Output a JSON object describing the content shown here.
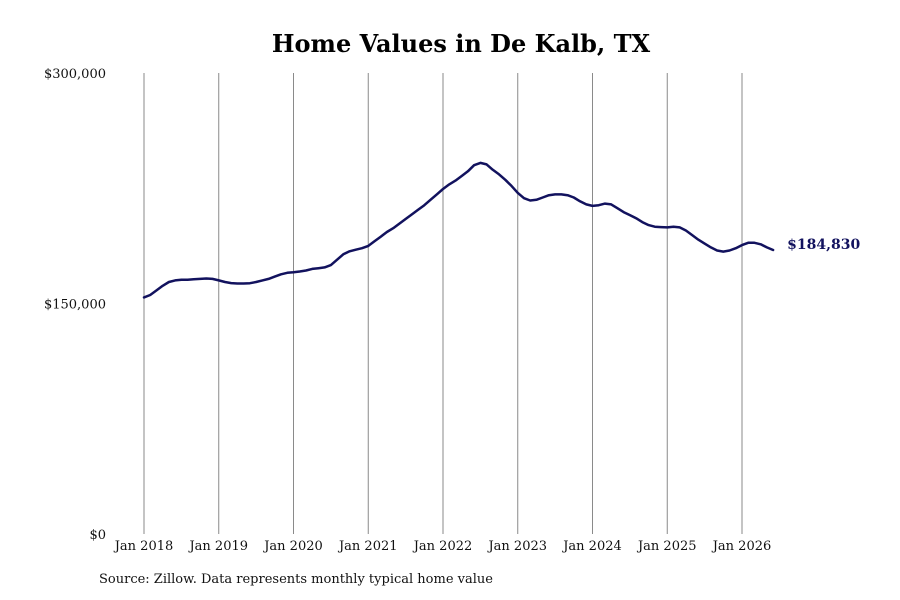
{
  "source_note": "Source: Zillow. Data represents monthly typical home value",
  "chart_data": {
    "type": "line",
    "title": "Home Values in De Kalb, TX",
    "xlabel": "",
    "ylabel": "",
    "ylim": [
      0,
      300000
    ],
    "y_ticks": [
      {
        "value": 0,
        "label": "$0"
      },
      {
        "value": 150000,
        "label": "$150,000"
      },
      {
        "value": 300000,
        "label": "$300,000"
      }
    ],
    "x_ticks": [
      {
        "date": "2018-01",
        "label": "Jan 2018"
      },
      {
        "date": "2019-01",
        "label": "Jan 2019"
      },
      {
        "date": "2020-01",
        "label": "Jan 2020"
      },
      {
        "date": "2021-01",
        "label": "Jan 2021"
      },
      {
        "date": "2022-01",
        "label": "Jan 2022"
      },
      {
        "date": "2023-01",
        "label": "Jan 2023"
      },
      {
        "date": "2024-01",
        "label": "Jan 2024"
      },
      {
        "date": "2025-01",
        "label": "Jan 2025"
      },
      {
        "date": "2026-01",
        "label": "Jan 2026"
      }
    ],
    "grid": "vertical",
    "line_color": "#12125e",
    "end_label": "$184,830",
    "series": [
      {
        "points": [
          [
            "2018-01",
            154000
          ],
          [
            "2018-02",
            155500
          ],
          [
            "2018-03",
            158500
          ],
          [
            "2018-04",
            161500
          ],
          [
            "2018-05",
            164000
          ],
          [
            "2018-06",
            165000
          ],
          [
            "2018-07",
            165500
          ],
          [
            "2018-08",
            165500
          ],
          [
            "2018-09",
            165800
          ],
          [
            "2018-10",
            166000
          ],
          [
            "2018-11",
            166300
          ],
          [
            "2018-12",
            166000
          ],
          [
            "2019-01",
            165000
          ],
          [
            "2019-02",
            164000
          ],
          [
            "2019-03",
            163300
          ],
          [
            "2019-04",
            163000
          ],
          [
            "2019-05",
            163000
          ],
          [
            "2019-06",
            163200
          ],
          [
            "2019-07",
            164000
          ],
          [
            "2019-08",
            165000
          ],
          [
            "2019-09",
            166000
          ],
          [
            "2019-10",
            167500
          ],
          [
            "2019-11",
            169000
          ],
          [
            "2019-12",
            170000
          ],
          [
            "2020-01",
            170300
          ],
          [
            "2020-02",
            170800
          ],
          [
            "2020-03",
            171500
          ],
          [
            "2020-04",
            172500
          ],
          [
            "2020-05",
            173000
          ],
          [
            "2020-06",
            173500
          ],
          [
            "2020-07",
            175000
          ],
          [
            "2020-08",
            178500
          ],
          [
            "2020-09",
            182000
          ],
          [
            "2020-10",
            184000
          ],
          [
            "2020-11",
            185000
          ],
          [
            "2020-12",
            186000
          ],
          [
            "2021-01",
            187500
          ],
          [
            "2021-02",
            190500
          ],
          [
            "2021-03",
            193500
          ],
          [
            "2021-04",
            196500
          ],
          [
            "2021-05",
            199000
          ],
          [
            "2021-06",
            202000
          ],
          [
            "2021-07",
            205000
          ],
          [
            "2021-08",
            208000
          ],
          [
            "2021-09",
            211000
          ],
          [
            "2021-10",
            214000
          ],
          [
            "2021-11",
            217500
          ],
          [
            "2021-12",
            221000
          ],
          [
            "2022-01",
            224500
          ],
          [
            "2022-02",
            227500
          ],
          [
            "2022-03",
            230000
          ],
          [
            "2022-04",
            233000
          ],
          [
            "2022-05",
            236000
          ],
          [
            "2022-06",
            240000
          ],
          [
            "2022-07",
            241500
          ],
          [
            "2022-08",
            240500
          ],
          [
            "2022-09",
            237000
          ],
          [
            "2022-10",
            234000
          ],
          [
            "2022-11",
            230500
          ],
          [
            "2022-12",
            226500
          ],
          [
            "2023-01",
            222000
          ],
          [
            "2023-02",
            218500
          ],
          [
            "2023-03",
            217000
          ],
          [
            "2023-04",
            217500
          ],
          [
            "2023-05",
            219000
          ],
          [
            "2023-06",
            220500
          ],
          [
            "2023-07",
            221000
          ],
          [
            "2023-08",
            221000
          ],
          [
            "2023-09",
            220500
          ],
          [
            "2023-10",
            219000
          ],
          [
            "2023-11",
            216500
          ],
          [
            "2023-12",
            214500
          ],
          [
            "2024-01",
            213500
          ],
          [
            "2024-02",
            214000
          ],
          [
            "2024-03",
            215000
          ],
          [
            "2024-04",
            214500
          ],
          [
            "2024-05",
            212000
          ],
          [
            "2024-06",
            209500
          ],
          [
            "2024-07",
            207500
          ],
          [
            "2024-08",
            205500
          ],
          [
            "2024-09",
            203000
          ],
          [
            "2024-10",
            201000
          ],
          [
            "2024-11",
            200000
          ],
          [
            "2024-12",
            199700
          ],
          [
            "2025-01",
            199500
          ],
          [
            "2025-02",
            200000
          ],
          [
            "2025-03",
            199500
          ],
          [
            "2025-04",
            197500
          ],
          [
            "2025-05",
            194500
          ],
          [
            "2025-06",
            191500
          ],
          [
            "2025-07",
            189000
          ],
          [
            "2025-08",
            186500
          ],
          [
            "2025-09",
            184500
          ],
          [
            "2025-10",
            183800
          ],
          [
            "2025-11",
            184500
          ],
          [
            "2025-12",
            186000
          ],
          [
            "2026-01",
            188000
          ],
          [
            "2026-02",
            189500
          ],
          [
            "2026-03",
            189500
          ],
          [
            "2026-04",
            188500
          ],
          [
            "2026-05",
            186500
          ],
          [
            "2026-06",
            184830
          ]
        ]
      }
    ]
  }
}
